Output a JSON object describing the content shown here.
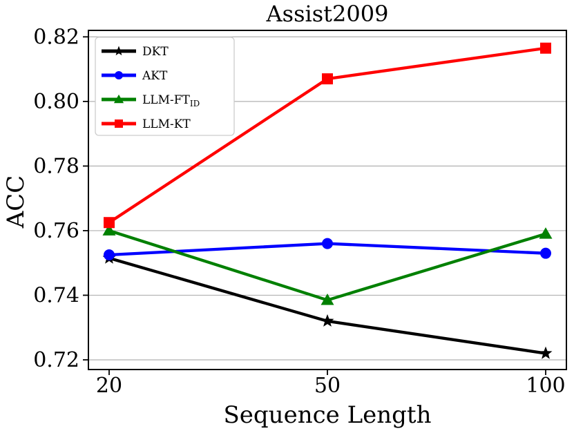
{
  "chart_data": {
    "type": "line",
    "title": "Assist2009",
    "xlabel": "Sequence Length",
    "ylabel": "ACC",
    "categories": [
      "20",
      "50",
      "100"
    ],
    "series": [
      {
        "name": "DKT",
        "display": "DKT",
        "subscript": "",
        "color": "#000000",
        "marker": "star",
        "values": [
          0.7515,
          0.732,
          0.722
        ]
      },
      {
        "name": "AKT",
        "display": "AKT",
        "subscript": "",
        "color": "#0000ff",
        "marker": "circle",
        "values": [
          0.7525,
          0.756,
          0.753
        ]
      },
      {
        "name": "LLM-FT_ID",
        "display": "LLM-FT",
        "subscript": "ID",
        "color": "#008000",
        "marker": "triangle",
        "values": [
          0.76,
          0.7385,
          0.759
        ]
      },
      {
        "name": "LLM-KT",
        "display": "LLM-KT",
        "subscript": "",
        "color": "#ff0000",
        "marker": "square",
        "values": [
          0.7625,
          0.807,
          0.8165
        ]
      }
    ],
    "yticks": [
      0.72,
      0.74,
      0.76,
      0.78,
      0.8,
      0.82
    ],
    "ytick_labels": [
      "0.72",
      "0.74",
      "0.76",
      "0.78",
      "0.80",
      "0.82"
    ],
    "ylim": [
      0.717,
      0.822
    ],
    "grid": "horizontal",
    "legend_position": "upper-left",
    "grid_color": "#b0b0b0",
    "spine_color": "#000000"
  }
}
